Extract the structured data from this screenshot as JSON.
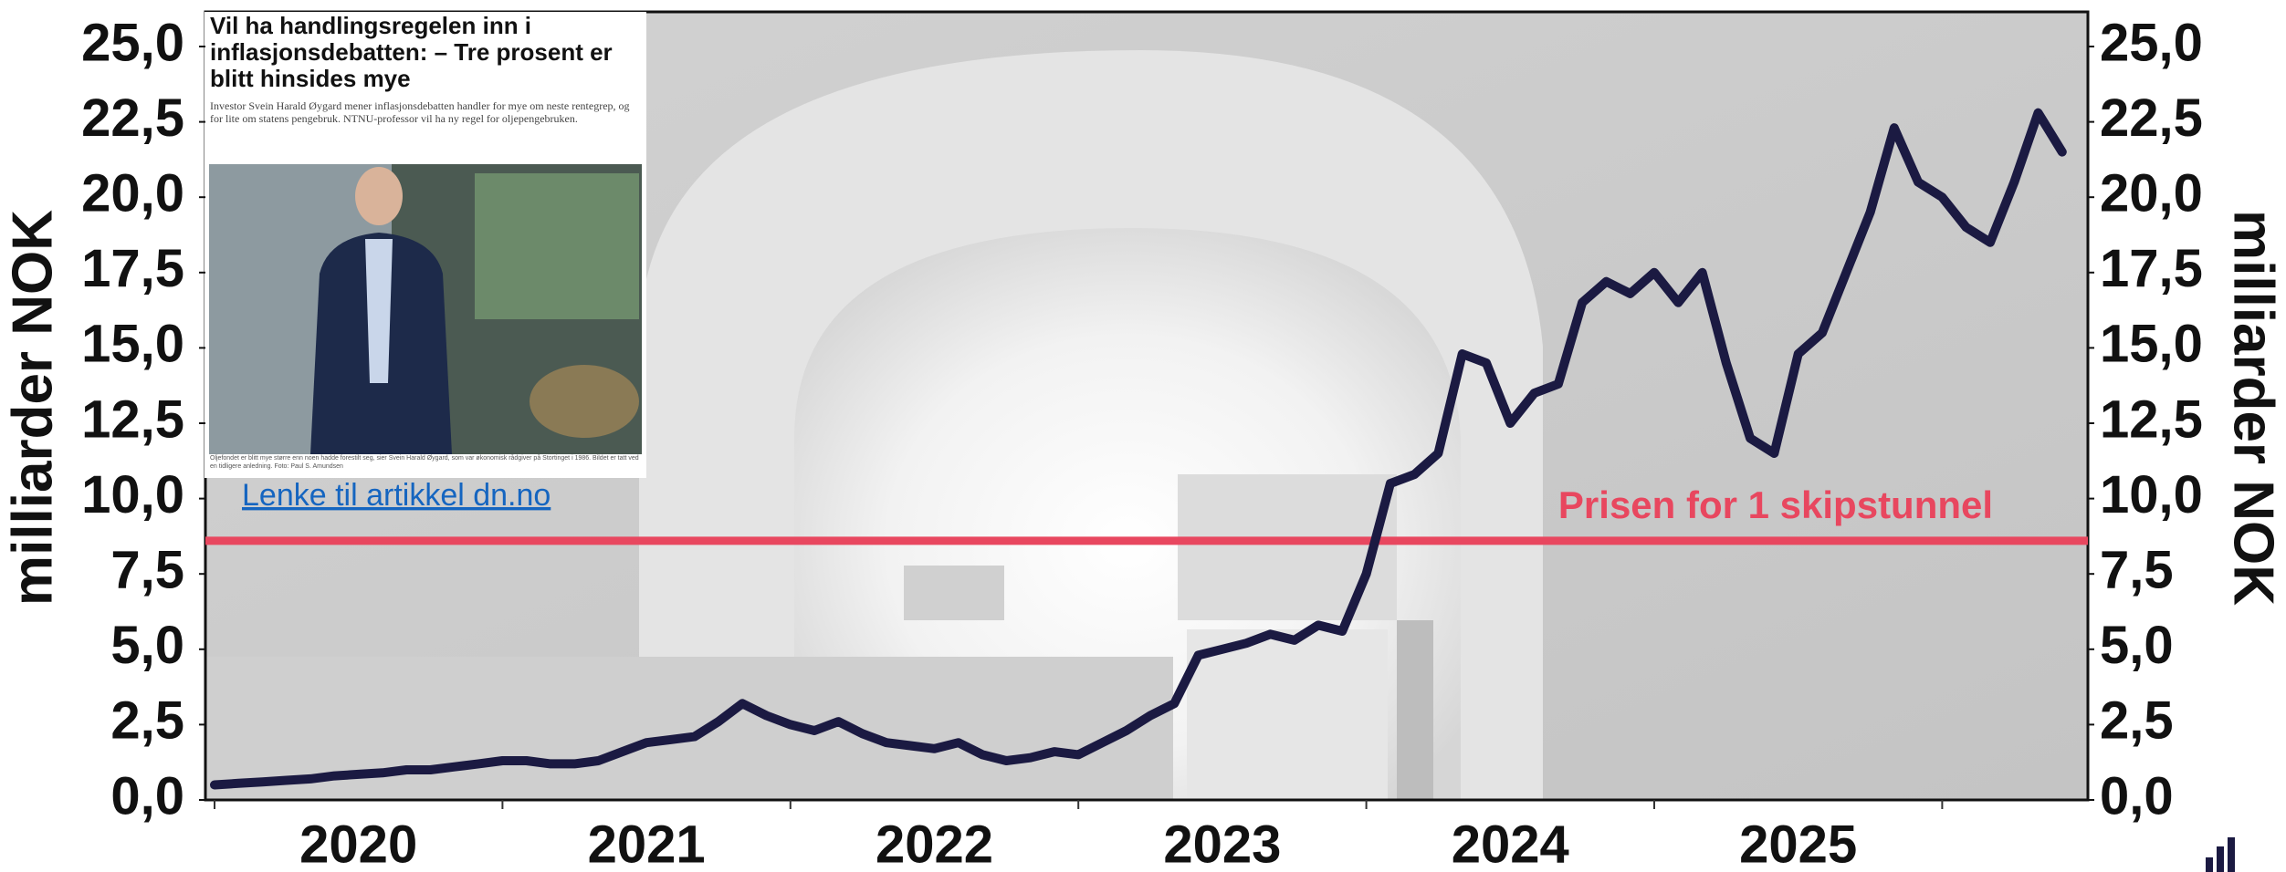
{
  "chart_data": {
    "type": "line",
    "ylabel": "milliarder NOK",
    "y2label": "milliarder NOK",
    "categories": [
      null,
      null,
      null,
      null,
      null,
      null,
      "2020",
      null,
      null,
      null,
      null,
      null,
      null,
      null,
      null,
      null,
      null,
      null,
      "2021",
      null,
      null,
      null,
      null,
      null,
      null,
      null,
      null,
      null,
      null,
      null,
      "2022",
      null,
      null,
      null,
      null,
      null,
      null,
      null,
      null,
      null,
      null,
      null,
      "2023",
      null,
      null,
      null,
      null,
      null,
      null,
      null,
      null,
      null,
      null,
      null,
      "2024",
      null,
      null,
      null,
      null,
      null,
      null,
      null,
      null,
      null,
      null,
      null,
      "2025",
      null,
      null,
      null,
      null,
      null,
      null,
      null,
      null,
      null,
      null,
      null
    ],
    "values": [
      0.5,
      0.55,
      0.6,
      0.65,
      0.7,
      0.8,
      0.85,
      0.9,
      1.0,
      1.0,
      1.1,
      1.2,
      1.3,
      1.3,
      1.2,
      1.2,
      1.3,
      1.6,
      1.9,
      2.0,
      2.1,
      2.6,
      3.2,
      2.8,
      2.5,
      2.3,
      2.6,
      2.2,
      1.9,
      1.8,
      1.7,
      1.9,
      1.5,
      1.3,
      1.4,
      1.6,
      1.5,
      1.9,
      2.3,
      2.8,
      3.2,
      4.8,
      5.0,
      5.2,
      5.5,
      5.3,
      5.8,
      5.6,
      7.5,
      10.5,
      10.8,
      11.5,
      14.8,
      14.5,
      12.5,
      13.5,
      13.8,
      16.5,
      17.2,
      16.8,
      17.5,
      16.5,
      17.5,
      14.5,
      12.0,
      11.5,
      14.8,
      15.5,
      17.5,
      19.5,
      22.3,
      20.5,
      20.0,
      19.0,
      18.5,
      20.5,
      22.8,
      21.5
    ],
    "color": "#1b1a42",
    "ylim": [
      0,
      25
    ],
    "yticks": [
      {
        "value": 0,
        "label": "0,0"
      },
      {
        "value": 2.5,
        "label": "2,5"
      },
      {
        "value": 5,
        "label": "5,0"
      },
      {
        "value": 7.5,
        "label": "7,5"
      },
      {
        "value": 10,
        "label": "10,0"
      },
      {
        "value": 12.5,
        "label": "12,5"
      },
      {
        "value": 15,
        "label": "15,0"
      },
      {
        "value": 17.5,
        "label": "17,5"
      },
      {
        "value": 20,
        "label": "20,0"
      },
      {
        "value": 22.5,
        "label": "22,5"
      },
      {
        "value": 25,
        "label": "25,0"
      }
    ],
    "y2lim": [
      0,
      25
    ],
    "y2ticks": [
      {
        "value": 0,
        "label": "0,0"
      },
      {
        "value": 2.5,
        "label": "2,5"
      },
      {
        "value": 5,
        "label": "5,0"
      },
      {
        "value": 7.5,
        "label": "7,5"
      },
      {
        "value": 10,
        "label": "10,0"
      },
      {
        "value": 12.5,
        "label": "12,5"
      },
      {
        "value": 15,
        "label": "15,0"
      },
      {
        "value": 17.5,
        "label": "17,5"
      },
      {
        "value": 20,
        "label": "20,0"
      },
      {
        "value": 22.5,
        "label": "22,5"
      },
      {
        "value": 25,
        "label": "25,0"
      }
    ],
    "hline": {
      "value": 8.6,
      "label": "Prisen for 1 skipstunnel",
      "color": "#e8475f"
    },
    "grid": false
  },
  "article": {
    "headline": "Vil ha handlingsregelen inn i inflasjonsdebatten: – Tre prosent er blitt hinsides mye",
    "lede": "Investor Svein Harald Øygard mener inflasjonsdebatten handler for mye om neste rentegrep, og for lite om statens pengebruk. NTNU-professor vil ha ny regel for oljepengebruken.",
    "caption": "Oljefondet er blitt mye større enn noen hadde forestilt seg, sier Svein Harald Øygard, som var økonomisk rådgiver på Stortinget i 1986. Bildet er tatt ved en tidligere anledning. Foto: Paul S. Amundsen",
    "link": "Lenke til artikkel dn.no"
  }
}
